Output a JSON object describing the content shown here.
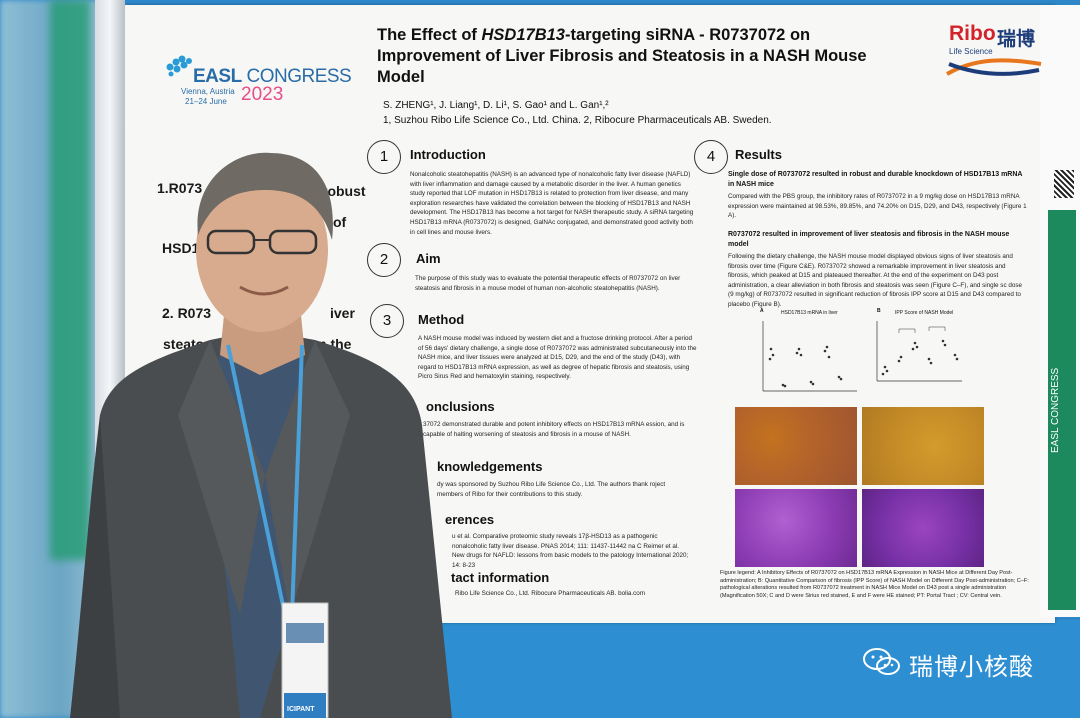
{
  "congress": {
    "name_bold": "EASL",
    "name_light": " CONGRESS",
    "place": "Vienna, Austria",
    "dates": "21–24 June",
    "year": "2023"
  },
  "brand": {
    "name": "Ribo",
    "name_cn": "瑞博",
    "subtitle": "Life Science"
  },
  "poster": {
    "title_pre": "The Effect of ",
    "title_gene": "HSD17B13",
    "title_rest": "-targeting siRNA - R0737072 on Improvement of Liver Fibrosis and Steatosis in a NASH Mouse Model",
    "authors": "S. ZHENG¹, J. Liang¹, D. Li¹, S. Gao¹ and L. Gan¹,²",
    "affiliations": "1, Suzhou Ribo Life Science Co., Ltd. China.    2, Ribocure Pharmaceuticals AB. Sweden.",
    "sections": {
      "intro": {
        "num": "1",
        "heading": "Introduction",
        "text": "Nonalcoholic steatohepatitis (NASH) is an advanced type of nonalcoholic fatty liver disease (NAFLD) with liver inflammation and damage caused by a metabolic disorder in the liver. A human genetics study reported that LOF mutation in HSD17B13 is related to protection from liver disease, and many exploration researches have validated the correlation between the blocking of HSD17B13 and NASH development. The HSD17B13 has become a hot target for NASH therapeutic study. A siRNA targeting HSD17B13 mRNA (R0737072) is designed, GalNAc conjugated, and demonstrated good activity both in cell lines and mouse livers."
      },
      "aim": {
        "num": "2",
        "heading": "Aim",
        "text": "The purpose of this study was to evaluate the potential therapeutic effects of R0737072 on liver steatosis and fibrosis in a mouse model of human non-alcoholic steatohepatitis (NASH)."
      },
      "method": {
        "num": "3",
        "heading": "Method",
        "text": "A NASH mouse model was induced by western diet and a fructose drinking protocol. After a period of 56 days' dietary challenge, a single dose of R0737072 was administrated subcutaneously into the NASH mice, and liver tissues were analyzed at D15, D29, and the end of the study (D43), with regard to HSD17B13 mRNA expression, as well as degree of hepatic fibrosis and steatosis, using Picro Sirus Red and hematoxylin staining, respectively."
      },
      "conclusions": {
        "heading": "onclusions",
        "text": "37072 demonstrated durable and potent inhibitory effects on HSD17B13 mRNA ession, and is capable of halting worsening of steatosis and fibrosis in a mouse of NASH."
      },
      "ack": {
        "heading": "knowledgements",
        "text": "dy was sponsored by Suzhou Ribo Life Science Co., Ltd. The authors thank roject members of Ribo for their contributions to this study."
      },
      "refs": {
        "heading": "erences",
        "text": "u et al. Comparative proteomic study reveals 17β-HSD13 as a pathogenic nonalcoholic fatty liver disease. PNAS 2014; 111: 11437-11442 na C Reimer et al. New drugs for NAFLD: lessons from basic models to the patology International 2020; 14: 8-23"
      },
      "contact": {
        "heading": "tact information",
        "text": "Ribo Life Science Co., Ltd.  Ribocure Pharmaceuticals AB. bolia.com"
      },
      "results": {
        "num": "4",
        "heading": "Results",
        "bullet1": "Single dose of R0737072 resulted in robust and durable knockdown of HSD17B13 mRNA in NASH mice",
        "text1": "Compared with the PBS group, the inhibitory rates of R0737072 in a 9 mg/kg dose on HSD17B13 mRNA expression were maintained at 98.53%, 89.85%, and 74.20% on D15, D29, and D43, respectively (Figure 1 A).",
        "bullet2": "R0737072 resulted in improvement of liver steatosis and fibrosis in the NASH mouse model",
        "text2": "Following the dietary challenge, the NASH mouse model displayed obvious signs of liver steatosis and fibrosis over time (Figure C&E). R0737072 showed a remarkable improvement in liver steatosis and fibrosis, which peaked at D15 and plateaued thereafter. At the end of the experiment on D43 post administration, a clear alleviation in both fibrosis and steatosis was seen (Figure C–F), and single sc dose (9 mg/kg) of R0737072 resulted in significant reduction of fibrosis IPP score at D15 and D43 compared to placebo (Figure B).",
        "chartA_title": "HSD17B13 mRNA in liver",
        "chartB_title": "IPP Score of NASH Model",
        "chartA_label": "A",
        "chartB_label": "B",
        "legend": "Figure legend: A Inhibitory Effects of R0737072 on HSD17B13 mRNA Expression in NASH Mice at Different Day Post-administration; B: Quantitative Comparison of fibrosis (IPP Score) of NASH Model on Different Day Post-administration; C–F: pathological alterations resulted from R0737072 treatment in NASH Mice Model on D43 post a single administration (Magnification 50X; C and D were Sirius red stained, E and F were HE stained; PT: Portal Tract ; CV: Central vein."
      }
    }
  },
  "overlay_text": {
    "l1": "1.R073",
    "l2": "HSD17B",
    "l3": "2. R073",
    "l4": "steatos",
    "r1": "robust",
    "r2": "of",
    "r3": "iver",
    "r4": "n the"
  },
  "side_band": "EASL CONGRESS",
  "badge": "ICIPANT",
  "watermark": {
    "text": "瑞博小核酸"
  }
}
